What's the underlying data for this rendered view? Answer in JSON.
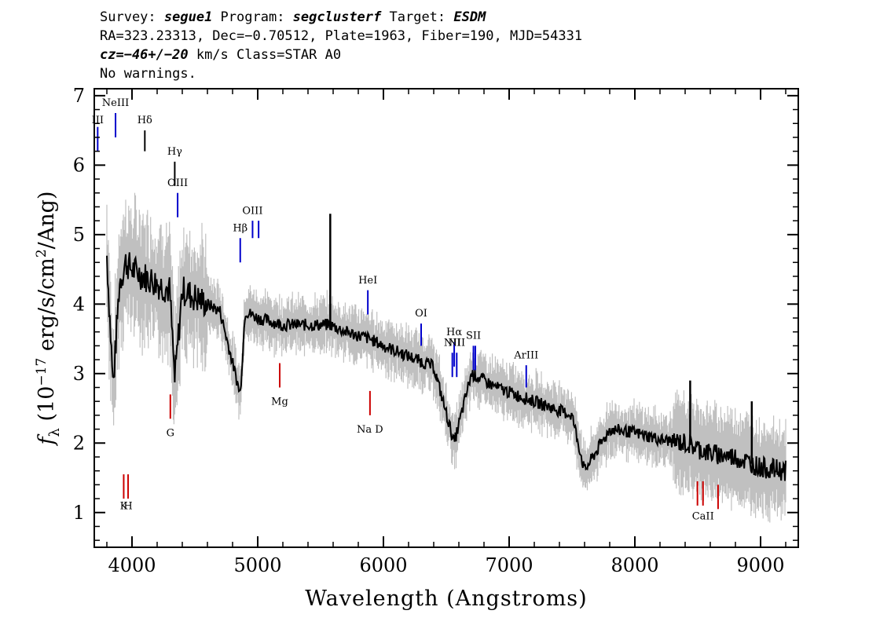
{
  "header": {
    "line1": {
      "survey_label": "Survey: ",
      "survey": "segue1",
      "program_label": " Program: ",
      "program": "segclusterf",
      "target_label": " Target: ",
      "target": "ESDM"
    },
    "line2": "RA=323.23313, Dec=−0.70512, Plate=1963, Fiber=190, MJD=54331",
    "line3": {
      "cz": "cz=−46+/−20",
      "rest": " km/s Class=STAR A0"
    },
    "line4": "No warnings."
  },
  "chart_data": {
    "type": "line",
    "xlabel": "Wavelength (Angstroms)",
    "ylabel": "f_λ (10^-17 erg/s/cm^2/Ang)",
    "xlim": [
      3700,
      9300
    ],
    "ylim": [
      0.5,
      7.1
    ],
    "xticks": [
      "4000",
      "5000",
      "6000",
      "7000",
      "8000",
      "9000"
    ],
    "yticks": [
      "1",
      "2",
      "3",
      "4",
      "5",
      "6",
      "7"
    ],
    "colors": {
      "flux": "#000000",
      "error": "#c0c0c0",
      "emission": "#0000cc",
      "absorption": "#cc0000",
      "neutral": "#000000"
    },
    "spectrum": {
      "x": [
        3800,
        3850,
        3900,
        3950,
        4000,
        4100,
        4200,
        4300,
        4340,
        4400,
        4500,
        4700,
        4861,
        4900,
        5000,
        5200,
        5400,
        5577,
        5700,
        5890,
        6000,
        6200,
        6400,
        6563,
        6700,
        6900,
        7200,
        7500,
        7600,
        7800,
        8000,
        8200,
        8400,
        8600,
        8800,
        9000,
        9200
      ],
      "y": [
        4.7,
        2.8,
        4.3,
        4.6,
        4.5,
        4.4,
        4.3,
        4.2,
        2.9,
        4.2,
        4.1,
        3.9,
        2.7,
        3.9,
        3.8,
        3.7,
        3.7,
        3.7,
        3.6,
        3.5,
        3.4,
        3.25,
        3.1,
        2.0,
        3.0,
        2.8,
        2.6,
        2.4,
        1.6,
        2.2,
        2.15,
        2.05,
        2.0,
        1.85,
        1.8,
        1.65,
        1.6
      ],
      "spikes": [
        {
          "x": 5577,
          "y": 5.3
        },
        {
          "x": 8440,
          "y": 2.9
        },
        {
          "x": 8930,
          "y": 2.6
        }
      ]
    },
    "lines": [
      {
        "label": "III",
        "x": 3727,
        "y0": 6.2,
        "y1": 6.55,
        "type": "emission",
        "label_y": 6.6
      },
      {
        "label": "NeIII",
        "x": 3869,
        "y0": 6.4,
        "y1": 6.75,
        "type": "emission",
        "label_y": 6.85
      },
      {
        "label": "Hδ",
        "x": 4102,
        "y0": 6.2,
        "y1": 6.5,
        "type": "neutral",
        "label_y": 6.6
      },
      {
        "label": "Hγ",
        "x": 4340,
        "y0": 5.7,
        "y1": 6.05,
        "type": "neutral",
        "label_y": 6.15
      },
      {
        "label": "OIII",
        "x": 4363,
        "y0": 5.25,
        "y1": 5.6,
        "type": "emission",
        "label_y": 5.7
      },
      {
        "label": "Hβ",
        "x": 4861,
        "y0": 4.6,
        "y1": 4.95,
        "type": "emission",
        "label_y": 5.05
      },
      {
        "label": "OIII",
        "x": 4959,
        "y0": 4.95,
        "y1": 5.2,
        "type": "emission",
        "label_y": 5.3
      },
      {
        "label": "",
        "x": 5007,
        "y0": 4.95,
        "y1": 5.2,
        "type": "emission",
        "label_y": 5.3
      },
      {
        "label": "HeI",
        "x": 5876,
        "y0": 3.85,
        "y1": 4.2,
        "type": "emission",
        "label_y": 4.3
      },
      {
        "label": "OI",
        "x": 6300,
        "y0": 3.4,
        "y1": 3.72,
        "type": "emission",
        "label_y": 3.82
      },
      {
        "label": "NII",
        "x": 6548,
        "y0": 2.95,
        "y1": 3.3,
        "type": "emission",
        "label_y": 3.4
      },
      {
        "label": "Hα",
        "x": 6563,
        "y0": 3.1,
        "y1": 3.45,
        "type": "emission",
        "label_y": 3.55
      },
      {
        "label": "NII",
        "x": 6583,
        "y0": 2.95,
        "y1": 3.3,
        "type": "emission",
        "label_y": 3.4
      },
      {
        "label": "SII",
        "x": 6716,
        "y0": 3.05,
        "y1": 3.4,
        "type": "emission",
        "label_y": 3.5
      },
      {
        "label": "",
        "x": 6731,
        "y0": 3.05,
        "y1": 3.4,
        "type": "emission",
        "label_y": 3.5
      },
      {
        "label": "ArIII",
        "x": 7136,
        "y0": 2.8,
        "y1": 3.12,
        "type": "emission",
        "label_y": 3.22
      },
      {
        "label": "K",
        "x": 3934,
        "y0": 1.2,
        "y1": 1.55,
        "type": "absorption",
        "label_y": 1.05
      },
      {
        "label": "H",
        "x": 3969,
        "y0": 1.2,
        "y1": 1.55,
        "type": "absorption",
        "label_y": 1.05
      },
      {
        "label": "G",
        "x": 4305,
        "y0": 2.35,
        "y1": 2.7,
        "type": "absorption",
        "label_y": 2.1
      },
      {
        "label": "Mg",
        "x": 5175,
        "y0": 2.8,
        "y1": 3.15,
        "type": "absorption",
        "label_y": 2.55
      },
      {
        "label": "Na  D",
        "x": 5893,
        "y0": 2.4,
        "y1": 2.75,
        "type": "absorption",
        "label_y": 2.15
      },
      {
        "label": "",
        "x": 8498,
        "y0": 1.1,
        "y1": 1.45,
        "type": "absorption",
        "label_y": 0.9
      },
      {
        "label": "CaII",
        "x": 8542,
        "y0": 1.1,
        "y1": 1.45,
        "type": "absorption",
        "label_y": 0.9
      },
      {
        "label": "",
        "x": 8662,
        "y0": 1.05,
        "y1": 1.4,
        "type": "absorption",
        "label_y": 0.9
      }
    ]
  }
}
